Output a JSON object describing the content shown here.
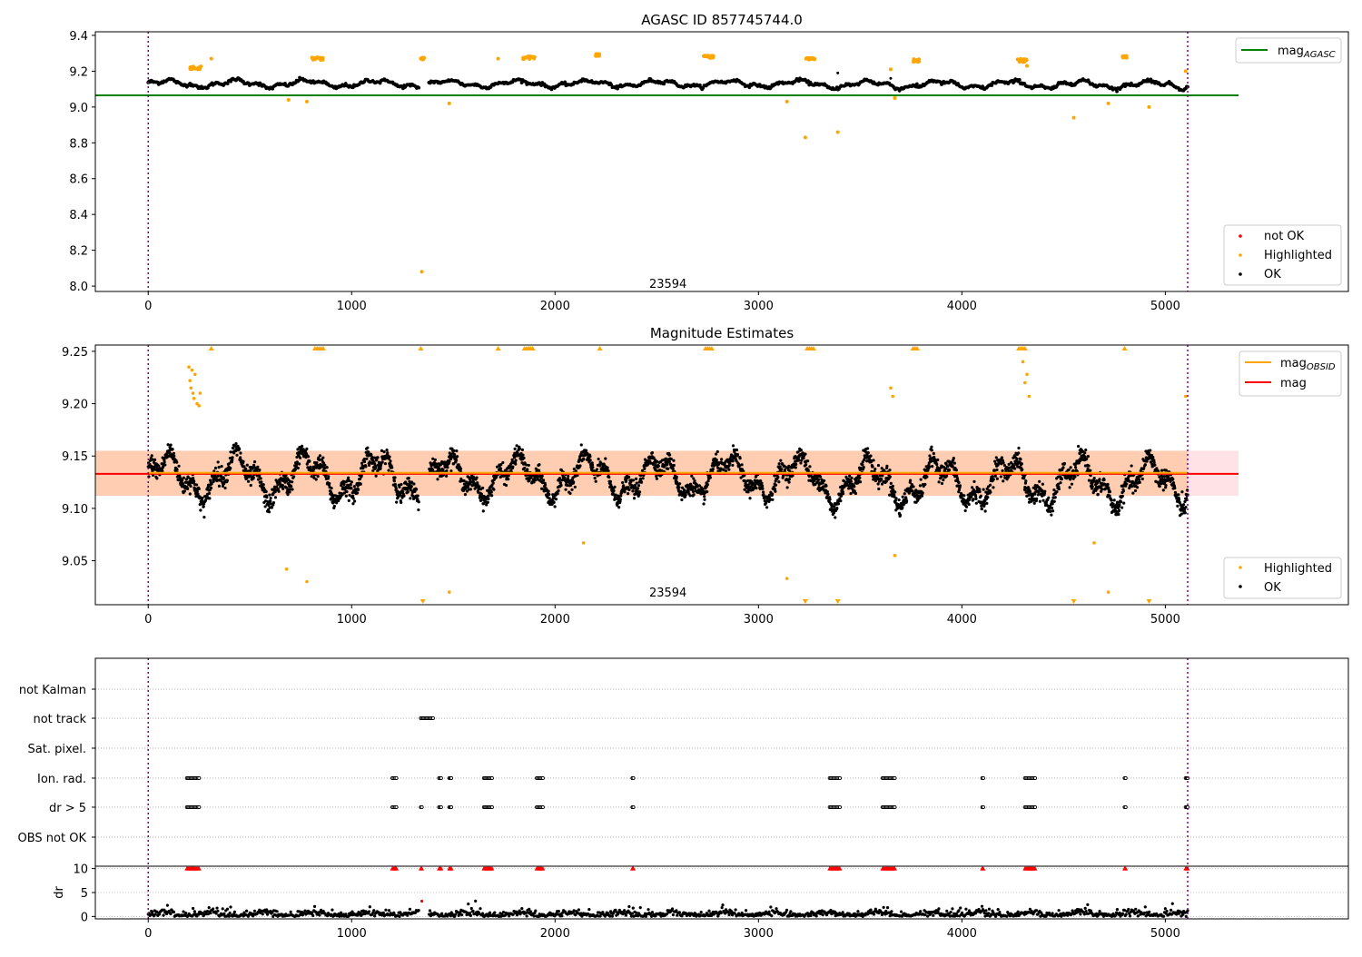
{
  "colors": {
    "ok": "#000000",
    "highlighted": "#ffa500",
    "not_ok": "#ff0000",
    "mag_agasc": "#008000",
    "mag": "#ff0000",
    "mag_obsid": "#ffa500",
    "obs_boundary": "#800080",
    "band_inner": "#ffc9a8",
    "band_outer": "#ffdde0"
  },
  "chart_data": [
    {
      "type": "scatter",
      "title": "AGASC ID 857745744.0",
      "xlim": [
        -260,
        5900
      ],
      "ylim": [
        7.97,
        9.42
      ],
      "xticks": [
        0,
        1000,
        2000,
        3000,
        4000,
        5000
      ],
      "yticks": [
        8.0,
        8.2,
        8.4,
        8.6,
        8.8,
        9.0,
        9.2,
        9.4
      ],
      "ytick_decimals": 1,
      "obs_boundaries": [
        0,
        5110
      ],
      "obs_label": {
        "text": "23594",
        "x": 2555,
        "y": 7.99
      },
      "hlines": [
        {
          "name": "mag_AGASC",
          "y": 9.065,
          "x0": -260,
          "x1": 5360,
          "color": "#008000"
        }
      ],
      "legend_lines": [
        {
          "base": "mag",
          "sub": "AGASC",
          "color": "#008000",
          "position": "top-right"
        }
      ],
      "legend_points": [
        {
          "label": "not OK",
          "color": "#ff0000"
        },
        {
          "label": "Highlighted",
          "color": "#ffa500"
        },
        {
          "label": "OK",
          "color": "#000000"
        }
      ],
      "highlight_clusters": [
        [
          200,
          260,
          9.22,
          0.02
        ],
        [
          800,
          860,
          9.27,
          0.015
        ],
        [
          1340,
          1360,
          9.27,
          0.01
        ],
        [
          1840,
          1900,
          9.275,
          0.015
        ],
        [
          2200,
          2220,
          9.29,
          0.012
        ],
        [
          2730,
          2780,
          9.28,
          0.015
        ],
        [
          3230,
          3280,
          9.27,
          0.01
        ],
        [
          3760,
          3790,
          9.26,
          0.015
        ],
        [
          4270,
          4320,
          9.26,
          0.02
        ],
        [
          4790,
          4810,
          9.28,
          0.01
        ]
      ],
      "highlight_points": [
        [
          310,
          9.27
        ],
        [
          690,
          9.04
        ],
        [
          780,
          9.03
        ],
        [
          1345,
          8.08
        ],
        [
          1480,
          9.02
        ],
        [
          1720,
          9.27
        ],
        [
          3140,
          9.03
        ],
        [
          3230,
          8.83
        ],
        [
          3390,
          8.86
        ],
        [
          3650,
          9.21
        ],
        [
          3670,
          9.05
        ],
        [
          4320,
          9.23
        ],
        [
          4550,
          8.94
        ],
        [
          4720,
          9.02
        ],
        [
          4920,
          9.0
        ],
        [
          5100,
          9.2
        ]
      ],
      "ok_segments": [
        [
          0,
          1330,
          9.13,
          0.025,
          260
        ],
        [
          1380,
          3300,
          9.13,
          0.022,
          380
        ],
        [
          3300,
          5110,
          9.125,
          0.025,
          360
        ]
      ],
      "ok_points": [
        [
          3390,
          9.19
        ],
        [
          3650,
          9.16
        ]
      ]
    },
    {
      "type": "scatter",
      "title": "Magnitude Estimates",
      "xlim": [
        -260,
        5900
      ],
      "ylim": [
        9.008,
        9.256
      ],
      "xticks": [
        0,
        1000,
        2000,
        3000,
        4000,
        5000
      ],
      "yticks": [
        9.05,
        9.1,
        9.15,
        9.2,
        9.25
      ],
      "ytick_decimals": 2,
      "obs_boundaries": [
        0,
        5110
      ],
      "obs_label": {
        "text": "23594",
        "x": 2555,
        "y": 9.016
      },
      "bands": [
        {
          "x0": -260,
          "x1": 5360,
          "y0": 9.112,
          "y1": 9.155,
          "color": "#ffdde0"
        },
        {
          "x0": -260,
          "x1": 5110,
          "y0": 9.112,
          "y1": 9.155,
          "color": "#ffc9a8"
        }
      ],
      "hlines": [
        {
          "name": "mag",
          "y": 9.133,
          "x0": -260,
          "x1": 5360,
          "color": "#ff0000"
        },
        {
          "name": "mag_OBSID",
          "y": 9.134,
          "x0": 0,
          "x1": 5110,
          "color": "#ffa500"
        }
      ],
      "legend_lines": [
        {
          "base": "mag",
          "sub": "OBSID",
          "color": "#ffa500",
          "position": "top-right"
        },
        {
          "base": "mag",
          "sub": "",
          "color": "#ff0000",
          "position": "top-right"
        }
      ],
      "legend_points": [
        {
          "label": "Highlighted",
          "color": "#ffa500"
        },
        {
          "label": "OK",
          "color": "#000000"
        }
      ],
      "ok_segments": [
        [
          0,
          1330,
          9.13,
          0.025,
          900
        ],
        [
          1380,
          3300,
          9.13,
          0.022,
          1300
        ],
        [
          3300,
          5110,
          9.125,
          0.025,
          1200
        ]
      ],
      "highlight_points": [
        [
          200,
          9.235
        ],
        [
          205,
          9.222
        ],
        [
          210,
          9.215
        ],
        [
          215,
          9.232
        ],
        [
          220,
          9.21
        ],
        [
          225,
          9.205
        ],
        [
          230,
          9.228
        ],
        [
          240,
          9.2
        ],
        [
          250,
          9.198
        ],
        [
          255,
          9.21
        ],
        [
          680,
          9.042
        ],
        [
          780,
          9.03
        ],
        [
          1480,
          9.02
        ],
        [
          2140,
          9.067
        ],
        [
          3140,
          9.033
        ],
        [
          3650,
          9.215
        ],
        [
          3660,
          9.207
        ],
        [
          3670,
          9.055
        ],
        [
          4300,
          9.24
        ],
        [
          4310,
          9.22
        ],
        [
          4320,
          9.228
        ],
        [
          4330,
          9.207
        ],
        [
          4650,
          9.067
        ],
        [
          4720,
          9.02
        ],
        [
          5100,
          9.207
        ]
      ],
      "clipped_top": [
        310,
        820,
        830,
        840,
        850,
        860,
        1340,
        1720,
        1850,
        1860,
        1870,
        1880,
        1890,
        2220,
        2740,
        2750,
        2760,
        2770,
        3240,
        3250,
        3260,
        3270,
        3760,
        3770,
        3780,
        4280,
        4290,
        4300,
        4310,
        4800
      ],
      "clipped_bottom": [
        1350,
        3230,
        3390,
        4550,
        4920
      ]
    },
    {
      "type": "scatter",
      "title": "",
      "xlim": [
        -260,
        5900
      ],
      "xticks": [
        0,
        1000,
        2000,
        3000,
        4000,
        5000
      ],
      "obs_boundaries": [
        0,
        5110
      ],
      "flag_rows": [
        "not Kalman",
        "not track",
        "Sat. pixel.",
        "Ion. rad.",
        "dr > 5",
        "OBS not OK"
      ],
      "flag_points": {
        "not track": [
          [
            1340,
            1400
          ]
        ],
        "Ion. rad.": [
          [
            190,
            250
          ],
          [
            1200,
            1220
          ],
          [
            1430,
            1440
          ],
          [
            1480,
            1490
          ],
          [
            1650,
            1690
          ],
          [
            1910,
            1940
          ],
          [
            2380,
            2385
          ],
          [
            3350,
            3400
          ],
          [
            3610,
            3670
          ],
          [
            4100,
            4105
          ],
          [
            4310,
            4360
          ],
          [
            4800,
            4805
          ],
          [
            5100,
            5110
          ]
        ],
        "dr > 5": [
          [
            190,
            250
          ],
          [
            1200,
            1220
          ],
          [
            1340,
            1345
          ],
          [
            1430,
            1440
          ],
          [
            1480,
            1490
          ],
          [
            1650,
            1690
          ],
          [
            1910,
            1940
          ],
          [
            2380,
            2385
          ],
          [
            3350,
            3400
          ],
          [
            3610,
            3670
          ],
          [
            4100,
            4105
          ],
          [
            4310,
            4360
          ],
          [
            4800,
            4805
          ],
          [
            5100,
            5110
          ]
        ]
      },
      "dr": {
        "ylabel": "dr",
        "ylim": [
          -0.5,
          10.5
        ],
        "yticks": [
          0,
          5,
          10
        ],
        "capped_value": 10,
        "outlier": [
          1345,
          3.2
        ]
      }
    }
  ]
}
